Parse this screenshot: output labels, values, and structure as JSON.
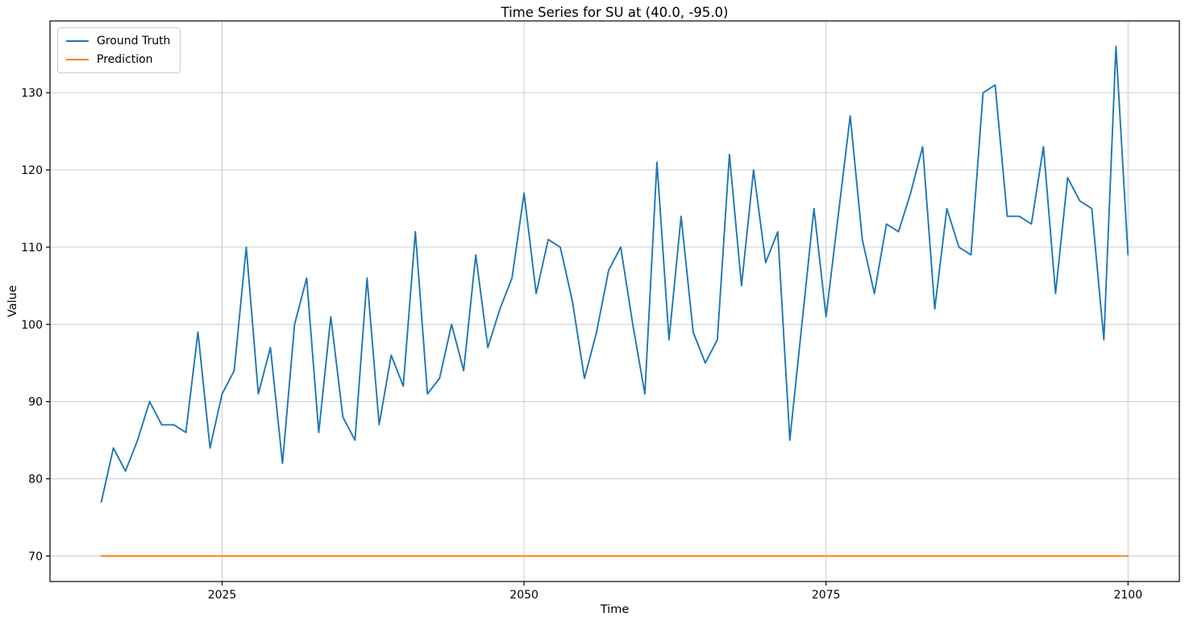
{
  "chart_data": {
    "type": "line",
    "title": "Time Series for SU at (40.0, -95.0)",
    "xlabel": "Time",
    "ylabel": "Value",
    "grid": true,
    "legend_position": "upper left",
    "xlim": [
      2010.75,
      2104.25
    ],
    "ylim": [
      66.7,
      139.3
    ],
    "x_ticks": [
      2025,
      2050,
      2075,
      2100
    ],
    "y_ticks": [
      70,
      80,
      90,
      100,
      110,
      120,
      130
    ],
    "grid_color": "#cccccc",
    "spine_color": "#000000",
    "x": [
      2015,
      2016,
      2017,
      2018,
      2019,
      2020,
      2021,
      2022,
      2023,
      2024,
      2025,
      2026,
      2027,
      2028,
      2029,
      2030,
      2031,
      2032,
      2033,
      2034,
      2035,
      2036,
      2037,
      2038,
      2039,
      2040,
      2041,
      2042,
      2043,
      2044,
      2045,
      2046,
      2047,
      2048,
      2049,
      2050,
      2051,
      2052,
      2053,
      2054,
      2055,
      2056,
      2057,
      2058,
      2059,
      2060,
      2061,
      2062,
      2063,
      2064,
      2065,
      2066,
      2067,
      2068,
      2069,
      2070,
      2071,
      2072,
      2073,
      2074,
      2075,
      2076,
      2077,
      2078,
      2079,
      2080,
      2081,
      2082,
      2083,
      2084,
      2085,
      2086,
      2087,
      2088,
      2089,
      2090,
      2091,
      2092,
      2093,
      2094,
      2095,
      2096,
      2097,
      2098,
      2099,
      2100
    ],
    "series": [
      {
        "name": "Ground Truth",
        "color": "#1f77b4",
        "values": [
          77,
          84,
          81,
          85,
          90,
          87,
          87,
          86,
          99,
          84,
          91,
          94,
          110,
          91,
          97,
          82,
          100,
          106,
          86,
          101,
          88,
          85,
          106,
          87,
          96,
          92,
          112,
          91,
          93,
          100,
          94,
          109,
          97,
          102,
          106,
          117,
          104,
          111,
          110,
          103,
          93,
          99,
          107,
          110,
          100,
          91,
          121,
          98,
          114,
          99,
          95,
          98,
          122,
          105,
          120,
          108,
          112,
          85,
          100,
          115,
          101,
          114,
          127,
          111,
          104,
          113,
          112,
          117,
          123,
          102,
          115,
          110,
          109,
          130,
          131,
          114,
          114,
          113,
          123,
          104,
          119,
          116,
          115,
          98,
          136,
          109
        ]
      },
      {
        "name": "Prediction",
        "color": "#ff7f0e",
        "values": [
          70,
          70,
          70,
          70,
          70,
          70,
          70,
          70,
          70,
          70,
          70,
          70,
          70,
          70,
          70,
          70,
          70,
          70,
          70,
          70,
          70,
          70,
          70,
          70,
          70,
          70,
          70,
          70,
          70,
          70,
          70,
          70,
          70,
          70,
          70,
          70,
          70,
          70,
          70,
          70,
          70,
          70,
          70,
          70,
          70,
          70,
          70,
          70,
          70,
          70,
          70,
          70,
          70,
          70,
          70,
          70,
          70,
          70,
          70,
          70,
          70,
          70,
          70,
          70,
          70,
          70,
          70,
          70,
          70,
          70,
          70,
          70,
          70,
          70,
          70,
          70,
          70,
          70,
          70,
          70,
          70,
          70,
          70,
          70,
          70,
          70
        ]
      }
    ]
  }
}
